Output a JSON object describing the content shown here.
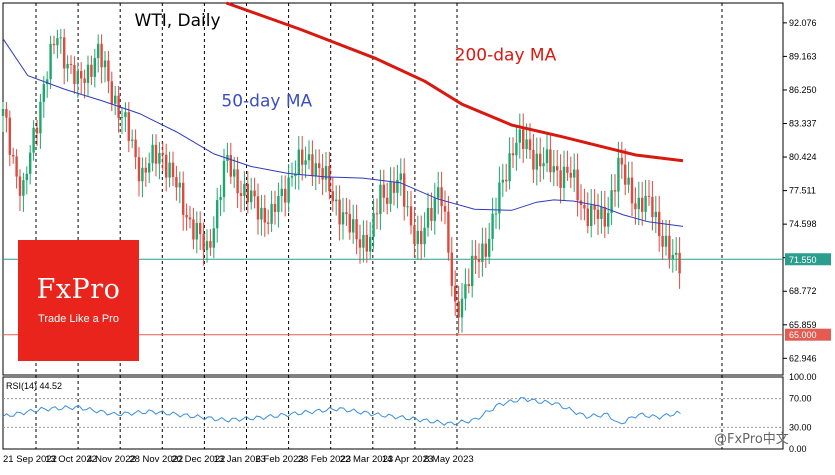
{
  "chart_data": {
    "type": "candlestick",
    "title": "WTI, Daily",
    "instrument": "WTI",
    "timeframe": "Daily",
    "ylim": [
      61.5,
      93.8
    ],
    "price_ticks": [
      "92.076",
      "89.163",
      "86.250",
      "83.337",
      "80.424",
      "77.511",
      "74.598",
      "71.685",
      "68.772",
      "65.859",
      "62.946"
    ],
    "date_labels": [
      "21 Sep 2022",
      "13 Oct 2022",
      "4 Nov 2022",
      "28 Nov 2022",
      "20 Dec 2022",
      "13 Jan 2023",
      "6 Feb 2023",
      "28 Feb 2023",
      "22 Mar 2023",
      "14 Apr 2023",
      "8 May 2023"
    ],
    "close_path": [
      [
        0,
        84
      ],
      [
        8,
        77
      ],
      [
        16,
        86.5
      ],
      [
        22,
        91
      ],
      [
        30,
        86.5
      ],
      [
        38,
        89.5
      ],
      [
        46,
        85
      ],
      [
        56,
        79
      ],
      [
        64,
        81
      ],
      [
        72,
        76.5
      ],
      [
        82,
        72
      ],
      [
        90,
        80
      ],
      [
        98,
        77
      ],
      [
        108,
        75
      ],
      [
        116,
        79
      ],
      [
        124,
        80.5
      ],
      [
        132,
        77.5
      ],
      [
        140,
        74
      ],
      [
        148,
        73
      ],
      [
        152,
        77.3
      ],
      [
        160,
        78
      ],
      [
        168,
        72.5
      ],
      [
        176,
        78.5
      ],
      [
        182,
        67
      ],
      [
        190,
        71
      ],
      [
        196,
        73.7
      ],
      [
        206,
        82
      ],
      [
        212,
        81
      ],
      [
        220,
        79.5
      ],
      [
        228,
        79
      ],
      [
        234,
        76
      ],
      [
        242,
        74.8
      ],
      [
        248,
        79.5
      ],
      [
        256,
        76.3
      ],
      [
        262,
        76
      ],
      [
        268,
        72
      ],
      [
        270,
        71.2
      ],
      [
        274,
        71.7
      ]
    ],
    "ma50": [
      [
        0,
        90.7
      ],
      [
        10,
        87.5
      ],
      [
        25,
        86.3
      ],
      [
        40,
        85.3
      ],
      [
        55,
        84.2
      ],
      [
        70,
        82.6
      ],
      [
        85,
        80.7
      ],
      [
        100,
        79.6
      ],
      [
        115,
        79
      ],
      [
        130,
        78.7
      ],
      [
        145,
        78.6
      ],
      [
        160,
        78.2
      ],
      [
        175,
        76.8
      ],
      [
        190,
        75.9
      ],
      [
        205,
        75.8
      ],
      [
        215,
        76.5
      ],
      [
        222,
        76.7
      ],
      [
        230,
        76.6
      ],
      [
        240,
        76.2
      ],
      [
        250,
        75.4
      ],
      [
        260,
        74.8
      ],
      [
        274,
        74.4
      ]
    ],
    "ma200": [
      [
        90,
        93.8
      ],
      [
        120,
        91.5
      ],
      [
        150,
        89
      ],
      [
        170,
        87
      ],
      [
        185,
        85
      ],
      [
        205,
        83.2
      ],
      [
        225,
        82.2
      ],
      [
        240,
        81.4
      ],
      [
        255,
        80.6
      ],
      [
        274,
        80.1
      ]
    ],
    "current_price": {
      "label": "71.550",
      "value": 71.55,
      "color": "#2a9d8f"
    },
    "level": {
      "label": "65.000",
      "value": 65.0,
      "color": "#e45b52"
    },
    "annotations": [
      {
        "text": "WTI, Daily",
        "x": 53,
        "y": 91.8,
        "color": "#000000"
      },
      {
        "text": "200-day MA",
        "x": 182,
        "y": 88.8,
        "color": "#d9180f"
      },
      {
        "text": "50-day MA",
        "x": 88,
        "y": 84.8,
        "color": "#3a4fbf"
      }
    ],
    "rsi": {
      "label": "RSI(14) 44.52",
      "ylim": [
        0,
        100
      ],
      "ticks": [
        "100.00",
        "70.00",
        "30.00",
        "0.00"
      ],
      "levels": [
        70,
        30
      ],
      "path": [
        [
          0,
          45
        ],
        [
          15,
          55
        ],
        [
          30,
          58
        ],
        [
          45,
          48
        ],
        [
          60,
          52
        ],
        [
          75,
          46
        ],
        [
          90,
          40
        ],
        [
          105,
          44
        ],
        [
          120,
          50
        ],
        [
          135,
          56
        ],
        [
          150,
          48
        ],
        [
          165,
          42
        ],
        [
          180,
          35
        ],
        [
          190,
          40
        ],
        [
          200,
          62
        ],
        [
          210,
          70
        ],
        [
          215,
          66
        ],
        [
          222,
          64
        ],
        [
          235,
          45
        ],
        [
          244,
          48
        ],
        [
          248,
          34
        ],
        [
          256,
          48
        ],
        [
          264,
          44
        ],
        [
          272,
          50
        ],
        [
          274,
          48
        ]
      ]
    }
  },
  "branding": {
    "logo_main": "FxPro",
    "logo_sub": "Trade Like a Pro",
    "watermark": "@FxPro中文"
  }
}
